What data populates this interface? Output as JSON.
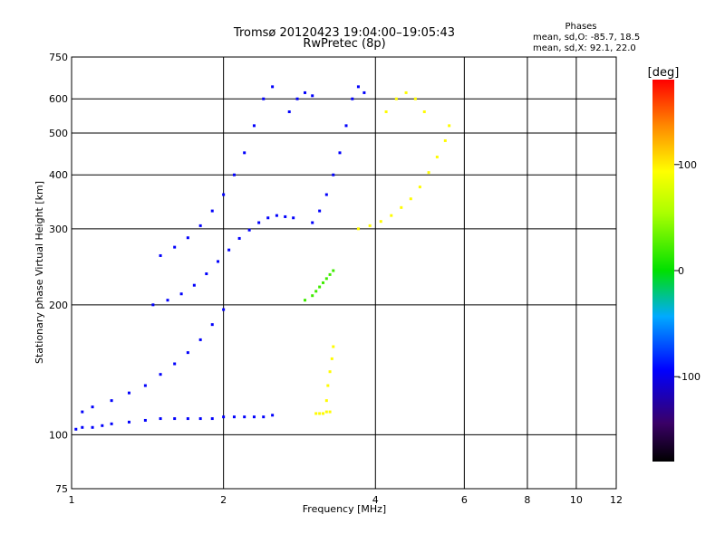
{
  "chart_data": {
    "type": "scatter",
    "title": "Tromsø 20120423 19:04:00–19:05:43",
    "subtitle": "RwPretec (8p)",
    "stats": {
      "heading": "Phases",
      "line1": "mean, sd,O: -85.7, 18.5",
      "line2": "mean, sd,X:  92.1, 22.0"
    },
    "xlabel": "Frequency [MHz]",
    "ylabel": "Stationary phase Virtual Height [km]",
    "x_scale": "log",
    "y_scale": "log",
    "xlim": [
      1,
      12
    ],
    "ylim": [
      75,
      750
    ],
    "xticks": [
      1,
      2,
      4,
      6,
      8,
      10,
      12
    ],
    "yticks": [
      75,
      100,
      200,
      300,
      400,
      500,
      600,
      750
    ],
    "grid": true,
    "colorbar": {
      "label": "[deg]",
      "range": [
        -180,
        180
      ],
      "ticks": [
        100,
        0,
        -100
      ],
      "colormap": "rainbow"
    },
    "series": [
      {
        "description": "dense O-mode traces, phase ≈ -100 deg",
        "phase": -95,
        "points": [
          [
            1.02,
            103
          ],
          [
            1.05,
            104
          ],
          [
            1.1,
            104
          ],
          [
            1.15,
            105
          ],
          [
            1.2,
            106
          ],
          [
            1.3,
            107
          ],
          [
            1.4,
            108
          ],
          [
            1.5,
            109
          ],
          [
            1.6,
            109
          ],
          [
            1.7,
            109
          ],
          [
            1.8,
            109
          ],
          [
            1.9,
            109
          ],
          [
            2.0,
            110
          ],
          [
            2.1,
            110
          ],
          [
            2.2,
            110
          ],
          [
            2.3,
            110
          ],
          [
            2.4,
            110
          ],
          [
            2.5,
            111
          ],
          [
            1.05,
            113
          ],
          [
            1.1,
            116
          ],
          [
            1.2,
            120
          ],
          [
            1.3,
            125
          ],
          [
            1.4,
            130
          ],
          [
            1.5,
            138
          ],
          [
            1.6,
            146
          ],
          [
            1.7,
            155
          ],
          [
            1.8,
            166
          ],
          [
            1.9,
            180
          ],
          [
            2.0,
            195
          ],
          [
            1.45,
            200
          ],
          [
            1.55,
            205
          ],
          [
            1.65,
            212
          ],
          [
            1.75,
            222
          ],
          [
            1.85,
            236
          ],
          [
            1.95,
            252
          ],
          [
            2.05,
            268
          ],
          [
            2.15,
            285
          ],
          [
            2.25,
            298
          ],
          [
            2.35,
            310
          ],
          [
            2.45,
            318
          ],
          [
            2.55,
            322
          ],
          [
            2.65,
            320
          ],
          [
            2.75,
            318
          ],
          [
            1.5,
            260
          ],
          [
            1.6,
            272
          ],
          [
            1.7,
            286
          ],
          [
            1.8,
            305
          ],
          [
            1.9,
            330
          ],
          [
            2.0,
            360
          ],
          [
            2.1,
            400
          ],
          [
            2.2,
            450
          ],
          [
            2.3,
            520
          ],
          [
            2.4,
            600
          ],
          [
            2.5,
            640
          ],
          [
            3.0,
            310
          ],
          [
            3.1,
            330
          ],
          [
            3.2,
            360
          ],
          [
            3.3,
            400
          ],
          [
            3.4,
            450
          ],
          [
            3.5,
            520
          ],
          [
            3.6,
            600
          ],
          [
            3.7,
            640
          ],
          [
            3.8,
            620
          ],
          [
            2.7,
            560
          ],
          [
            2.8,
            600
          ],
          [
            2.9,
            620
          ],
          [
            3.0,
            610
          ]
        ]
      },
      {
        "description": "X-mode traces, phase ≈ +100 deg",
        "phase": 95,
        "points": [
          [
            3.05,
            112
          ],
          [
            3.1,
            112
          ],
          [
            3.15,
            112
          ],
          [
            3.2,
            113
          ],
          [
            3.25,
            113
          ],
          [
            3.2,
            120
          ],
          [
            3.22,
            130
          ],
          [
            3.25,
            140
          ],
          [
            3.28,
            150
          ],
          [
            3.3,
            160
          ],
          [
            3.7,
            300
          ],
          [
            3.9,
            305
          ],
          [
            4.1,
            312
          ],
          [
            4.3,
            322
          ],
          [
            4.5,
            336
          ],
          [
            4.7,
            352
          ],
          [
            4.9,
            375
          ],
          [
            5.1,
            405
          ],
          [
            5.3,
            440
          ],
          [
            5.5,
            480
          ],
          [
            5.6,
            520
          ],
          [
            4.2,
            560
          ],
          [
            4.4,
            600
          ],
          [
            4.6,
            620
          ],
          [
            4.8,
            600
          ],
          [
            5.0,
            560
          ]
        ]
      },
      {
        "description": "green-cyan intermediate traces, phase ≈ 20 deg",
        "phase": 20,
        "points": [
          [
            2.9,
            205
          ],
          [
            3.0,
            210
          ],
          [
            3.05,
            215
          ],
          [
            3.1,
            220
          ],
          [
            3.15,
            225
          ],
          [
            3.2,
            230
          ],
          [
            3.25,
            235
          ],
          [
            3.3,
            240
          ]
        ]
      }
    ]
  }
}
